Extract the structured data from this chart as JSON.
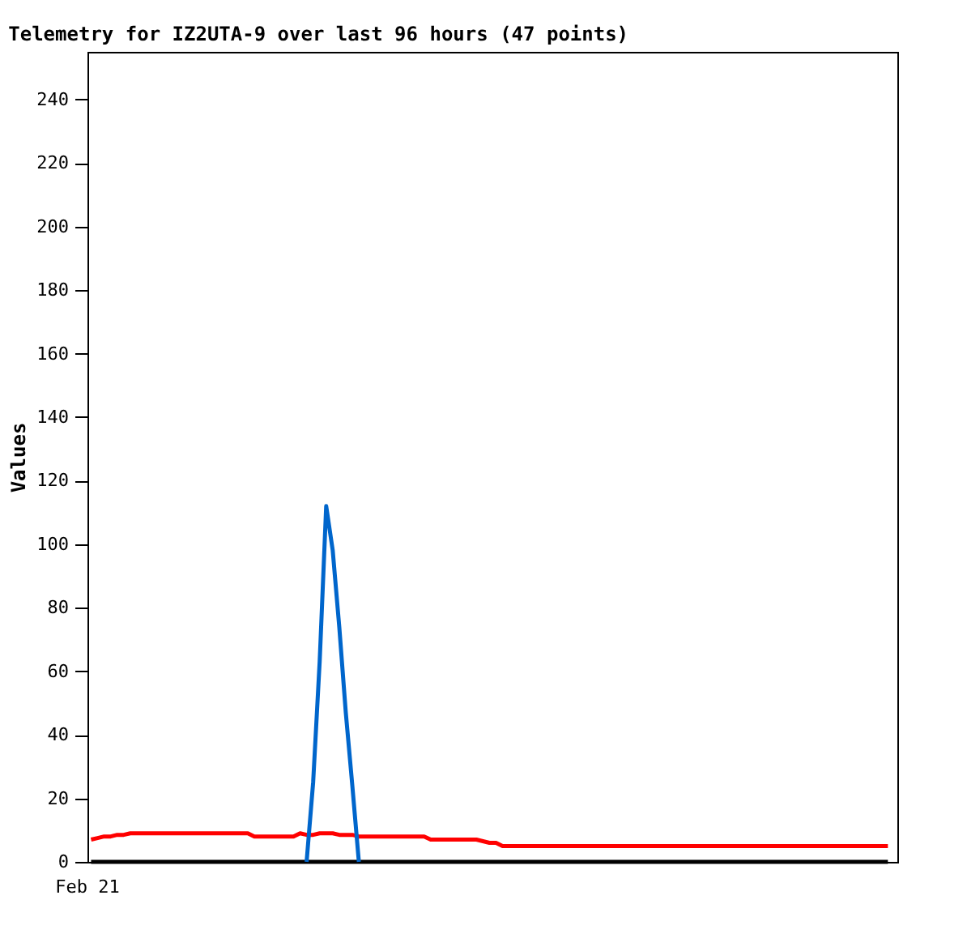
{
  "chart_data": {
    "type": "line",
    "title": "Telemetry for IZ2UTA-9 over last 96 hours (47 points)",
    "ylabel": "Values",
    "categories": [
      null,
      null,
      null,
      null,
      null,
      null,
      null,
      null,
      null,
      null,
      null,
      null,
      null,
      null,
      null,
      null,
      null,
      null,
      null,
      null,
      null,
      null,
      null,
      null,
      null,
      null,
      null,
      null,
      null,
      null,
      null,
      null,
      null,
      null,
      null,
      null,
      null,
      null,
      null,
      null,
      null,
      null,
      null,
      null,
      null,
      null,
      null,
      null,
      null,
      null,
      null,
      null,
      null,
      null,
      null,
      null,
      null,
      null,
      null,
      null,
      null,
      null,
      null,
      null,
      null,
      null,
      null,
      null,
      null,
      null,
      null,
      null,
      null,
      null,
      null,
      null,
      null,
      null,
      null,
      null,
      null,
      null,
      null,
      null,
      null,
      null,
      null,
      null,
      null,
      null,
      null,
      null,
      null,
      null,
      null,
      null,
      null,
      null,
      null,
      null,
      null,
      null,
      null,
      null,
      null,
      null,
      null,
      null,
      null,
      null,
      null,
      null,
      null,
      null,
      null,
      null,
      null,
      null,
      null,
      null,
      null,
      null,
      null
    ],
    "annotations": [
      "Feb 21"
    ],
    "ylim": [
      0,
      255
    ],
    "yticks": [
      0,
      20,
      40,
      60,
      80,
      100,
      120,
      140,
      160,
      180,
      200,
      220,
      240
    ],
    "grid": false,
    "marker": "none",
    "line_style": "solid",
    "series": [
      {
        "color": "#000000",
        "values": [
          0,
          0,
          0,
          0,
          0,
          0,
          0,
          0,
          0,
          0,
          0,
          0,
          0,
          0,
          0,
          0,
          0,
          0,
          0,
          0,
          0,
          0,
          0,
          0,
          0,
          0,
          0,
          0,
          0,
          0,
          0,
          0,
          0,
          0,
          0,
          0,
          0,
          0,
          0,
          0,
          0,
          0,
          0,
          0,
          0,
          0,
          0,
          0,
          0,
          0,
          0,
          0,
          0,
          0,
          0,
          0,
          0,
          0,
          0,
          0,
          0,
          0,
          0,
          0,
          0,
          0,
          0,
          0,
          0,
          0,
          0,
          0,
          0,
          0,
          0,
          0,
          0,
          0,
          0,
          0,
          0,
          0,
          0,
          0,
          0,
          0,
          0,
          0,
          0,
          0,
          0,
          0,
          0,
          0,
          0,
          0,
          0,
          0,
          0,
          0,
          0,
          0,
          0,
          0,
          0,
          0,
          0,
          0,
          0,
          0,
          0,
          0,
          0,
          0,
          0,
          0,
          0,
          0,
          0,
          0,
          0,
          0,
          0
        ]
      },
      {
        "color": "#ff0000",
        "values": [
          7,
          7.5,
          8,
          8,
          8.5,
          8.5,
          9,
          9,
          9,
          9,
          9,
          9,
          9,
          9,
          9,
          9,
          9,
          9,
          9,
          9,
          9,
          9,
          9,
          9,
          9,
          8,
          8,
          8,
          8,
          8,
          8,
          8,
          9,
          8.5,
          8.5,
          9,
          9,
          9,
          8.5,
          8.5,
          8.5,
          8,
          8,
          8,
          8,
          8,
          8,
          8,
          8,
          8,
          8,
          8,
          7,
          7,
          7,
          7,
          7,
          7,
          7,
          7,
          6.5,
          6,
          6,
          5,
          5,
          5,
          5,
          5,
          5,
          5,
          5,
          5,
          5,
          5,
          5,
          5,
          5,
          5,
          5,
          5,
          5,
          5,
          5,
          5,
          5,
          5,
          5,
          5,
          5,
          5,
          5,
          5,
          5,
          5,
          5,
          5,
          5,
          5,
          5,
          5,
          5,
          5,
          5,
          5,
          5,
          5,
          5,
          5,
          5,
          5,
          5,
          5,
          5,
          5,
          5,
          5,
          5,
          5,
          5,
          5,
          5,
          5,
          5
        ]
      },
      {
        "color": "#0066cc",
        "values": [
          null,
          null,
          null,
          null,
          null,
          null,
          null,
          null,
          null,
          null,
          null,
          null,
          null,
          null,
          null,
          null,
          null,
          null,
          null,
          null,
          null,
          null,
          null,
          null,
          null,
          null,
          null,
          null,
          null,
          null,
          null,
          null,
          null,
          0,
          25,
          63,
          112,
          98,
          74,
          47,
          24,
          0,
          null,
          null,
          null,
          null,
          null,
          null,
          null,
          null,
          null,
          null,
          null,
          null,
          null,
          null,
          null,
          null,
          null,
          null,
          null,
          null,
          null,
          null,
          null,
          null,
          null,
          null,
          null,
          null,
          null,
          null,
          null,
          null,
          null,
          null,
          null,
          null,
          null,
          null,
          null,
          null,
          null,
          null,
          null,
          null,
          null,
          null,
          null,
          null,
          null,
          null,
          null,
          null,
          null,
          null,
          null,
          null,
          null,
          null,
          null,
          null,
          null,
          null,
          null,
          null,
          null,
          null,
          null,
          null,
          null,
          null,
          null,
          null,
          null,
          null,
          null,
          null,
          null,
          null,
          null,
          null,
          null
        ]
      }
    ]
  }
}
